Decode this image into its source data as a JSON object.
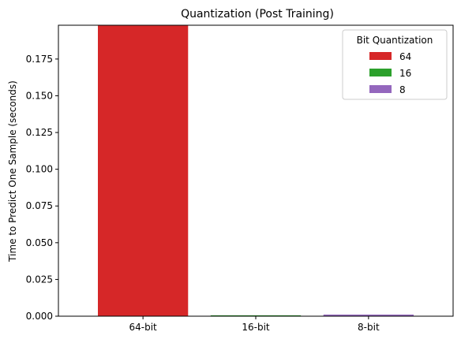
{
  "chart_data": {
    "type": "bar",
    "title": "Quantization (Post Training)",
    "xlabel": "",
    "ylabel": "Time to Predict One Sample (seconds)",
    "categories": [
      "64-bit",
      "16-bit",
      "8-bit"
    ],
    "values": [
      0.198,
      0.0006,
      0.0011
    ],
    "colors": [
      "#d62728",
      "#2ca02c",
      "#9467bd"
    ],
    "ylim": [
      0,
      0.198
    ],
    "yticks": [
      0.0,
      0.025,
      0.05,
      0.075,
      0.1,
      0.125,
      0.15,
      0.175
    ],
    "ytick_labels": [
      "0.000",
      "0.025",
      "0.050",
      "0.075",
      "0.100",
      "0.125",
      "0.150",
      "0.175"
    ],
    "legend": {
      "title": "Bit Quantization",
      "position": "top-right",
      "entries": [
        {
          "label": "64",
          "color": "#d62728"
        },
        {
          "label": "16",
          "color": "#2ca02c"
        },
        {
          "label": "8",
          "color": "#9467bd"
        }
      ]
    },
    "grid": false
  }
}
